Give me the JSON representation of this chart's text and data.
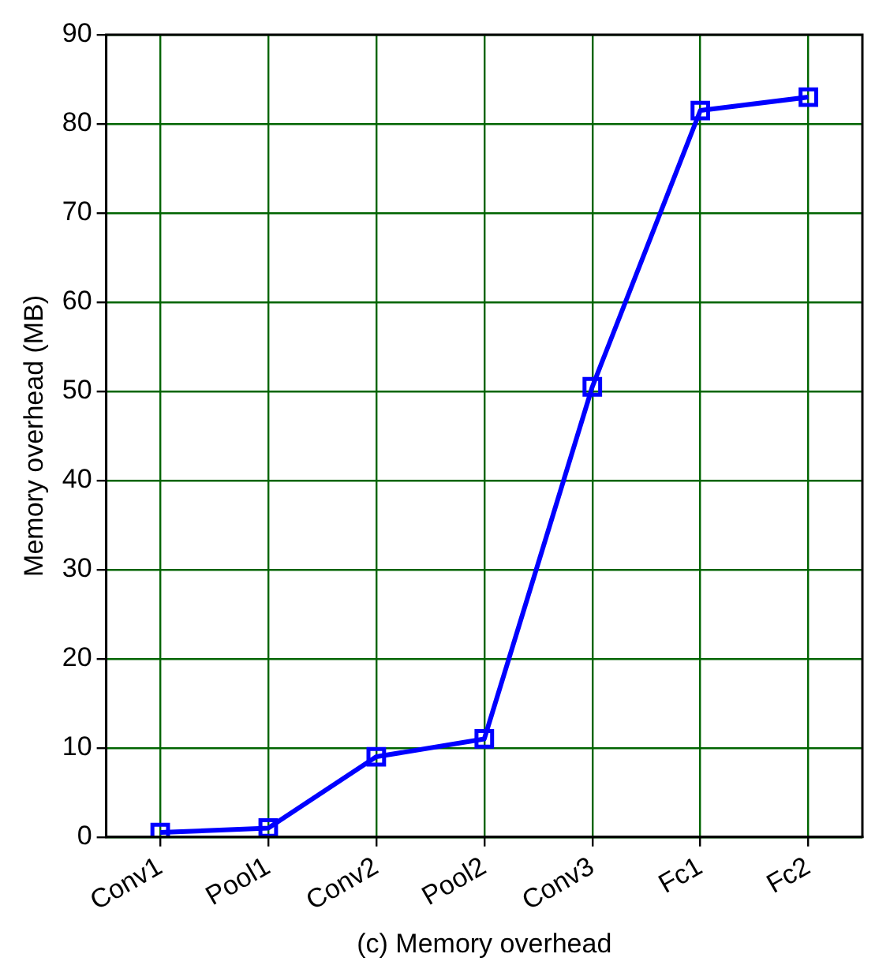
{
  "chart_data": {
    "type": "line",
    "xlabel": "(c) Memory overhead",
    "ylabel": "Memory overhead (MB)",
    "categories": [
      "Conv1",
      "Pool1",
      "Conv2",
      "Pool2",
      "Conv3",
      "Fc1",
      "Fc2"
    ],
    "series": [
      {
        "color": "#0000ff",
        "values": [
          0.5,
          1,
          9,
          11,
          50.5,
          81.5,
          83
        ]
      }
    ],
    "ylim": [
      0,
      90
    ],
    "yticks": [
      0,
      10,
      20,
      30,
      40,
      50,
      60,
      70,
      80,
      90
    ],
    "grid": true,
    "marker": "square",
    "line_style": "solid",
    "legend": false
  }
}
